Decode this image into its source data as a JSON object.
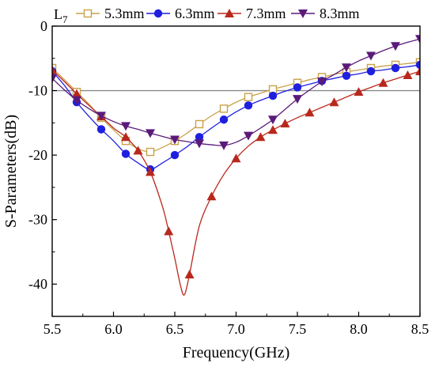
{
  "chart_data": {
    "type": "line",
    "title": "",
    "xlabel": "Frequency(GHz)",
    "ylabel": "S-Parameters(dB)",
    "xlim": [
      5.5,
      8.5
    ],
    "ylim": [
      -45,
      0
    ],
    "x_ticks": [
      5.5,
      6.0,
      6.5,
      7.0,
      7.5,
      8.0,
      8.5
    ],
    "x_tick_labels": [
      "5.5",
      "6.0",
      "6.5",
      "7.0",
      "7.5",
      "8.0",
      "8.5"
    ],
    "y_ticks": [
      0,
      -10,
      -20,
      -30,
      -40
    ],
    "y_tick_labels": [
      "0",
      "-10",
      "-20",
      "-30",
      "-40"
    ],
    "reference_line_y": -10,
    "grid": false,
    "legend_title": "L",
    "legend_title_subscript": "7",
    "legend_position": "top",
    "series": [
      {
        "name": "5.3mm",
        "color": "#c9a24a",
        "marker": "square-open",
        "x": [
          5.5,
          5.6,
          5.7,
          5.8,
          5.9,
          6.0,
          6.1,
          6.2,
          6.3,
          6.4,
          6.5,
          6.6,
          6.7,
          6.8,
          6.9,
          7.0,
          7.1,
          7.2,
          7.3,
          7.4,
          7.5,
          7.6,
          7.7,
          7.8,
          7.9,
          8.0,
          8.1,
          8.2,
          8.3,
          8.4,
          8.5
        ],
        "y": [
          -6.5,
          -8.3,
          -10.2,
          -12.1,
          -14.2,
          -16.1,
          -17.8,
          -19.0,
          -19.5,
          -18.8,
          -17.8,
          -16.6,
          -15.2,
          -13.9,
          -12.8,
          -11.8,
          -11.0,
          -10.4,
          -9.8,
          -9.3,
          -8.8,
          -8.3,
          -7.9,
          -7.5,
          -7.1,
          -6.8,
          -6.5,
          -6.2,
          -6.0,
          -5.8,
          -5.6
        ]
      },
      {
        "name": "6.3mm",
        "color": "#1f1fe0",
        "marker": "circle",
        "x": [
          5.5,
          5.6,
          5.7,
          5.8,
          5.9,
          6.0,
          6.1,
          6.2,
          6.3,
          6.4,
          6.5,
          6.6,
          6.7,
          6.8,
          6.9,
          7.0,
          7.1,
          7.2,
          7.3,
          7.4,
          7.5,
          7.6,
          7.7,
          7.8,
          7.9,
          8.0,
          8.1,
          8.2,
          8.3,
          8.4,
          8.5
        ],
        "y": [
          -7.0,
          -9.2,
          -11.8,
          -14.0,
          -16.0,
          -17.8,
          -19.8,
          -21.2,
          -22.2,
          -21.2,
          -20.0,
          -18.7,
          -17.2,
          -15.8,
          -14.5,
          -13.3,
          -12.3,
          -11.5,
          -10.8,
          -10.1,
          -9.5,
          -9.0,
          -8.5,
          -8.1,
          -7.7,
          -7.4,
          -7.0,
          -6.8,
          -6.5,
          -6.3,
          -6.0
        ]
      },
      {
        "name": "7.3mm",
        "color": "#b8281c",
        "marker": "triangle-up",
        "x": [
          5.5,
          5.6,
          5.7,
          5.8,
          5.9,
          6.0,
          6.1,
          6.2,
          6.3,
          6.4,
          6.45,
          6.5,
          6.55,
          6.58,
          6.62,
          6.7,
          6.8,
          6.9,
          7.0,
          7.1,
          7.2,
          7.3,
          7.4,
          7.5,
          7.6,
          7.7,
          7.8,
          7.9,
          8.0,
          8.1,
          8.2,
          8.3,
          8.4,
          8.5
        ],
        "y": [
          -6.8,
          -8.6,
          -10.5,
          -12.3,
          -14.0,
          -15.8,
          -17.2,
          -19.3,
          -22.6,
          -28.0,
          -31.8,
          -36.0,
          -40.5,
          -41.6,
          -38.5,
          -31.0,
          -26.4,
          -23.0,
          -20.5,
          -18.6,
          -17.2,
          -16.1,
          -15.1,
          -14.2,
          -13.4,
          -12.6,
          -11.8,
          -11.0,
          -10.2,
          -9.5,
          -8.8,
          -8.2,
          -7.6,
          -7.0
        ]
      },
      {
        "name": "8.3mm",
        "color": "#5b1a7a",
        "marker": "triangle-down",
        "x": [
          5.5,
          5.6,
          5.7,
          5.8,
          5.9,
          6.0,
          6.1,
          6.2,
          6.3,
          6.4,
          6.5,
          6.6,
          6.7,
          6.8,
          6.9,
          7.0,
          7.1,
          7.2,
          7.3,
          7.4,
          7.5,
          7.6,
          7.7,
          7.8,
          7.9,
          8.0,
          8.1,
          8.2,
          8.3,
          8.4,
          8.5
        ],
        "y": [
          -8.1,
          -9.9,
          -11.5,
          -12.8,
          -13.9,
          -14.8,
          -15.5,
          -16.0,
          -16.6,
          -17.1,
          -17.6,
          -17.9,
          -18.2,
          -18.4,
          -18.5,
          -18.0,
          -17.0,
          -15.8,
          -14.5,
          -12.9,
          -11.3,
          -9.9,
          -8.6,
          -7.5,
          -6.4,
          -5.4,
          -4.6,
          -3.8,
          -3.1,
          -2.5,
          -2.0
        ]
      }
    ]
  }
}
